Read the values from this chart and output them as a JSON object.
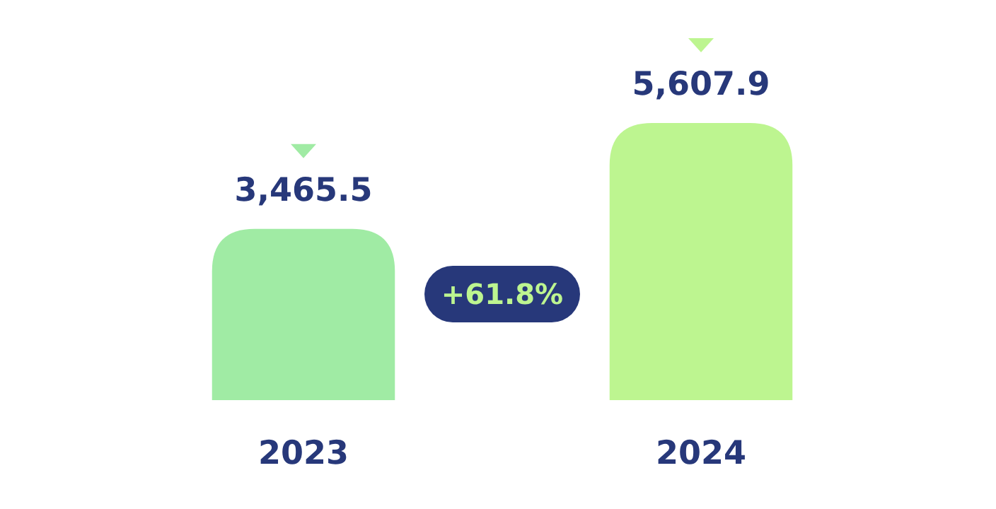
{
  "chart_data": {
    "type": "bar",
    "categories": [
      "2023",
      "2024"
    ],
    "values": [
      3465.5,
      5607.9
    ],
    "colors": [
      "#a0eba4",
      "#bdf590"
    ],
    "data_labels": true,
    "value_labels": [
      "3,465.5",
      "5,607.9"
    ],
    "annotations": [
      "+61.8%"
    ]
  }
}
